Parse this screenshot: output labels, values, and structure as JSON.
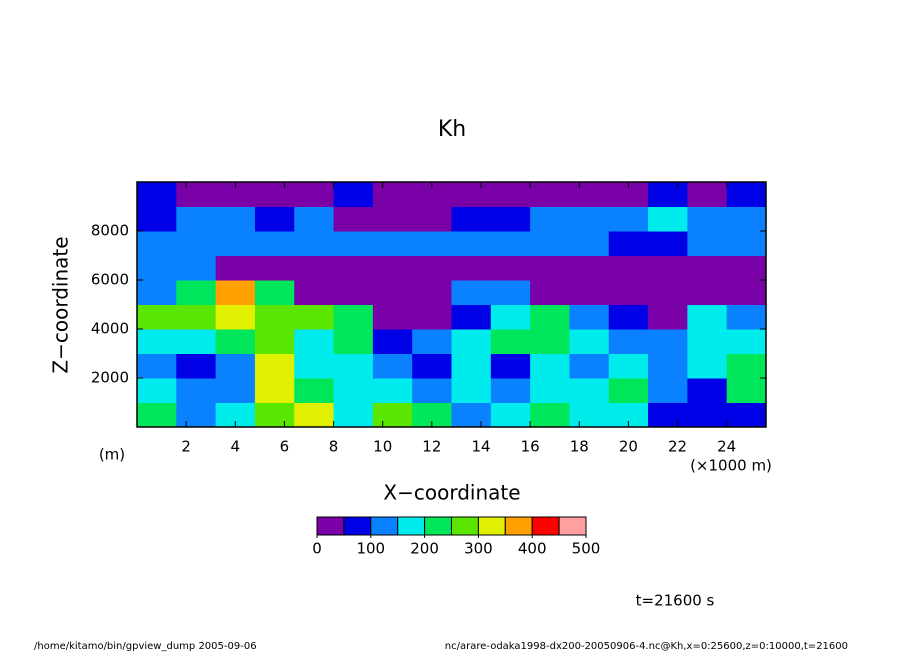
{
  "chart_data": {
    "type": "contour",
    "title": "Kh",
    "x_label": "X−coordinate",
    "y_label": "Z−coordinate",
    "x_unit": "(×1000 m)",
    "y_unit": "(m)",
    "xlim": [
      0,
      25.6
    ],
    "ylim": [
      0,
      10000
    ],
    "xticks": [
      2,
      4,
      6,
      8,
      10,
      12,
      14,
      16,
      18,
      20,
      22,
      24
    ],
    "yticks": [
      2000,
      4000,
      6000,
      8000
    ],
    "x": [
      0.8,
      2.4,
      4.0,
      5.6,
      7.2,
      8.8,
      10.4,
      12.0,
      13.6,
      15.2,
      16.8,
      18.4,
      20.0,
      21.6,
      23.2,
      24.8
    ],
    "y": [
      500,
      1500,
      2500,
      3500,
      4500,
      5500,
      6500,
      7500,
      8500,
      9500
    ],
    "z": [
      [
        230,
        120,
        170,
        280,
        320,
        180,
        260,
        220,
        120,
        170,
        210,
        180,
        150,
        90,
        60,
        80
      ],
      [
        160,
        110,
        130,
        300,
        230,
        150,
        180,
        120,
        180,
        130,
        180,
        150,
        200,
        130,
        90,
        230
      ],
      [
        120,
        80,
        120,
        330,
        160,
        150,
        110,
        90,
        170,
        70,
        190,
        140,
        170,
        130,
        160,
        200
      ],
      [
        190,
        180,
        220,
        260,
        150,
        230,
        80,
        140,
        150,
        200,
        210,
        150,
        130,
        110,
        190,
        180
      ],
      [
        260,
        280,
        300,
        280,
        260,
        230,
        40,
        30,
        60,
        180,
        240,
        100,
        80,
        40,
        150,
        110
      ],
      [
        130,
        230,
        360,
        220,
        40,
        30,
        20,
        20,
        130,
        120,
        30,
        20,
        20,
        20,
        20,
        40
      ],
      [
        110,
        110,
        40,
        20,
        20,
        20,
        20,
        20,
        20,
        20,
        20,
        20,
        20,
        20,
        30,
        30
      ],
      [
        120,
        130,
        100,
        140,
        110,
        130,
        100,
        120,
        140,
        120,
        130,
        110,
        80,
        90,
        140,
        120
      ],
      [
        90,
        130,
        120,
        80,
        130,
        30,
        20,
        20,
        70,
        90,
        130,
        140,
        100,
        180,
        130,
        110
      ],
      [
        80,
        40,
        30,
        30,
        30,
        80,
        30,
        30,
        30,
        30,
        40,
        30,
        30,
        80,
        30,
        60
      ]
    ],
    "levels": [
      0,
      50,
      100,
      150,
      200,
      250,
      300,
      350,
      400,
      450,
      500
    ],
    "colors": [
      "#7a00a8",
      "#0000e6",
      "#0a82ff",
      "#00ebeb",
      "#00e65a",
      "#5ae600",
      "#e1f000",
      "#ffa000",
      "#ff0000",
      "#ffa0a0"
    ],
    "colorbar_ticks": [
      0,
      100,
      200,
      300,
      400,
      500
    ],
    "annotation": "t=21600 s",
    "footer_left": "/home/kitamo/bin/gpview_dump  2005-09-06",
    "footer_right": "nc/arare-odaka1998-dx200-20050906-4.nc@Kh,x=0:25600,z=0:10000,t=21600"
  }
}
